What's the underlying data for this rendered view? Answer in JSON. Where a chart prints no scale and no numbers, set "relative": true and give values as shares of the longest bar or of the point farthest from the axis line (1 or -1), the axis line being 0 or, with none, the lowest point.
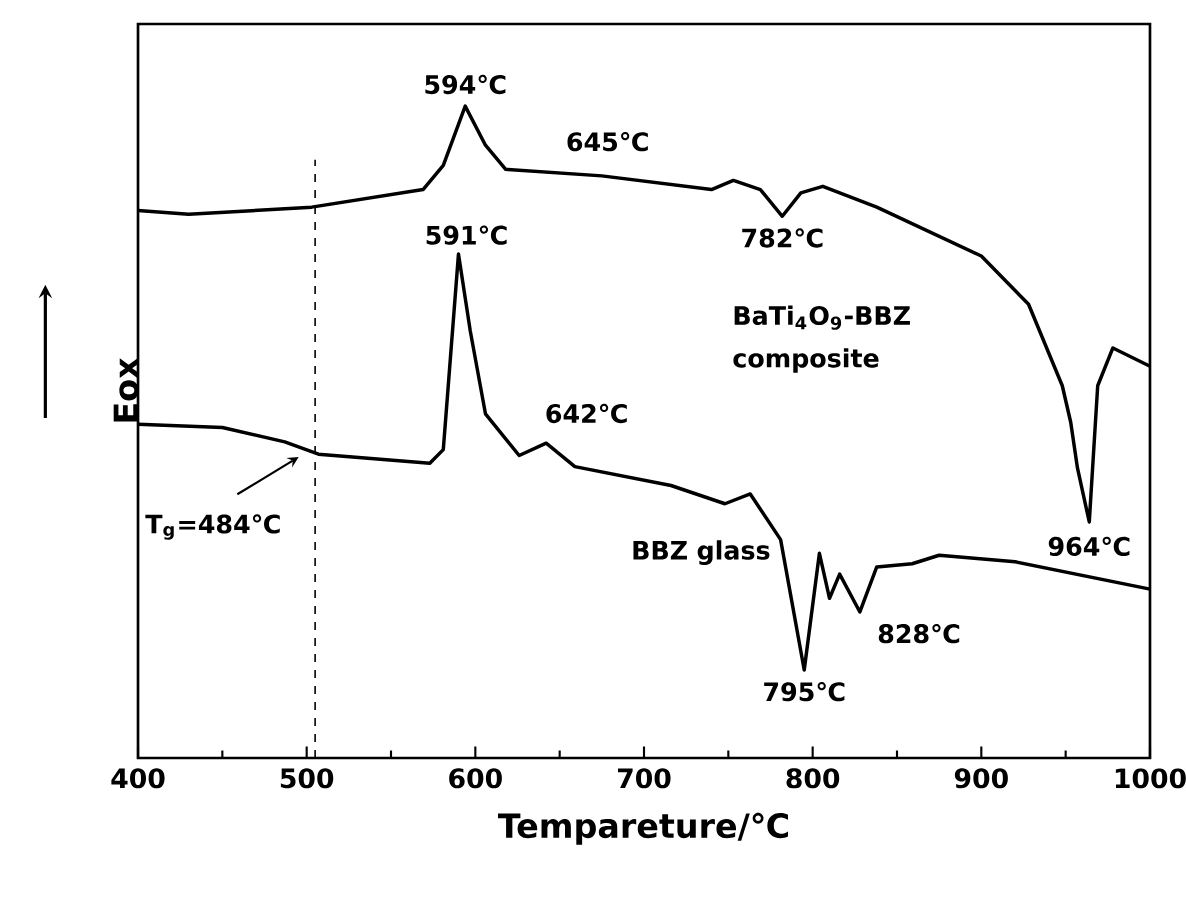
{
  "chart_data": {
    "type": "line",
    "relative": true,
    "xlabel": "Tempareture/℃",
    "ylabel": "Eox",
    "xlim": [
      400,
      1000
    ],
    "xticks": [
      400,
      500,
      600,
      700,
      800,
      900,
      1000
    ],
    "legend": false,
    "marker": "none",
    "line_style": "solid",
    "series": [
      {
        "name": "BaTi$_{4}$O$_{9}$-BBZ composite",
        "color": "#000000",
        "x": [
          400,
          430,
          503,
          569,
          581,
          594,
          606,
          618,
          675,
          740,
          753,
          769,
          782,
          793,
          806,
          838,
          900,
          928,
          948,
          953,
          957,
          964,
          969,
          978,
          1000
        ],
        "values": [
          0.84,
          0.834,
          0.845,
          0.872,
          0.909,
          1.0,
          0.94,
          0.903,
          0.893,
          0.872,
          0.886,
          0.872,
          0.831,
          0.867,
          0.877,
          0.845,
          0.77,
          0.696,
          0.571,
          0.515,
          0.445,
          0.362,
          0.571,
          0.629,
          0.601
        ]
      },
      {
        "name": "BBZ glass",
        "color": "#000000",
        "x": [
          400,
          450,
          487,
          507,
          573,
          581,
          590,
          597,
          606,
          626,
          642,
          659,
          716,
          748,
          763,
          781,
          795,
          804,
          810,
          816,
          828,
          838,
          859,
          875,
          920,
          1000
        ],
        "values": [
          0.512,
          0.507,
          0.485,
          0.466,
          0.452,
          0.473,
          0.773,
          0.655,
          0.528,
          0.464,
          0.483,
          0.447,
          0.418,
          0.39,
          0.405,
          0.335,
          0.135,
          0.314,
          0.245,
          0.282,
          0.224,
          0.293,
          0.298,
          0.311,
          0.301,
          0.259
        ]
      }
    ],
    "ref_lines": [
      {
        "axis": "x",
        "value": 505,
        "line_style": "dashed"
      }
    ],
    "annotations": [
      {
        "text": "594℃",
        "x": 594,
        "y": 1.0
      },
      {
        "text": "645℃",
        "x": 645,
        "y": 0.9
      },
      {
        "text": "782℃",
        "x": 782,
        "y": 0.831
      },
      {
        "text": "591℃",
        "x": 590,
        "y": 0.773
      },
      {
        "text": "642℃",
        "x": 642,
        "y": 0.483
      },
      {
        "text": "T$_{g}$=484℃",
        "x": 500,
        "y": 0.47
      },
      {
        "text": "795℃",
        "x": 795,
        "y": 0.135
      },
      {
        "text": "828℃",
        "x": 828,
        "y": 0.224
      },
      {
        "text": "964℃",
        "x": 964,
        "y": 0.362
      }
    ]
  }
}
